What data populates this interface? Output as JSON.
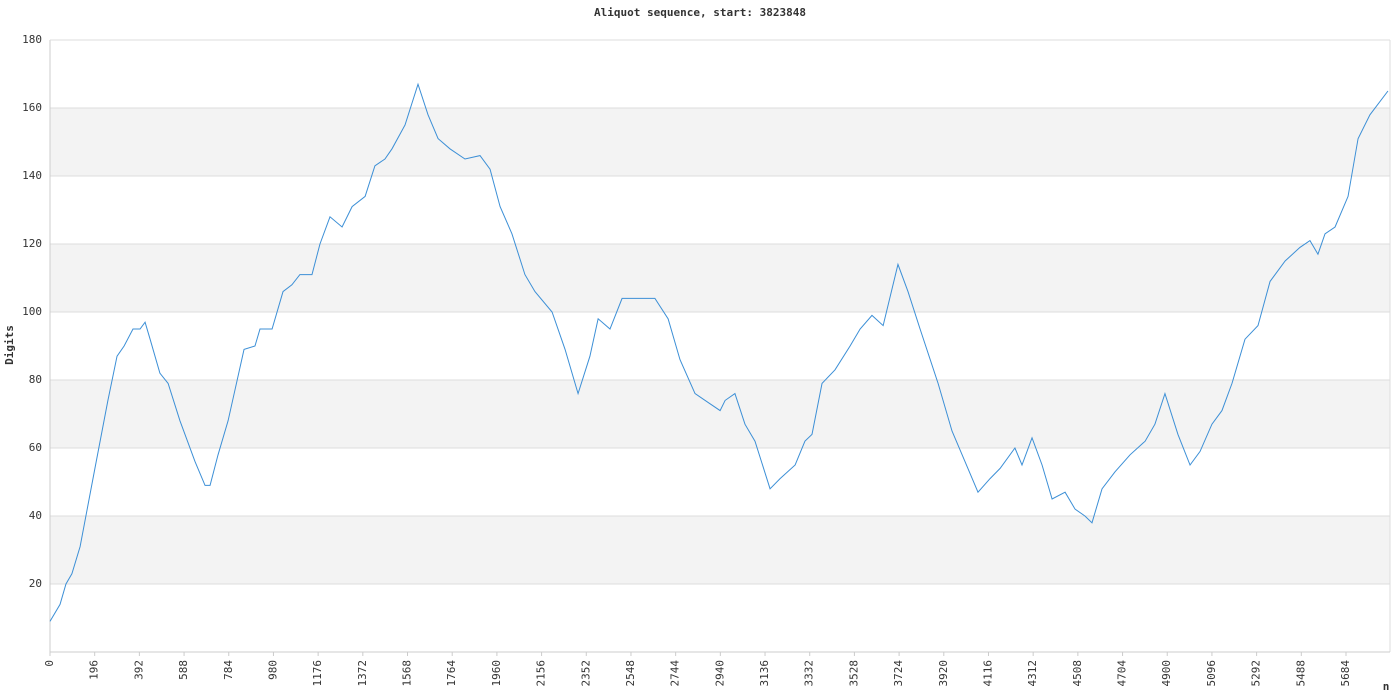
{
  "chart_data": {
    "type": "line",
    "title": "Aliquot sequence, start: 3823848",
    "x_label": "n",
    "y_label": "Digits",
    "x": [
      0,
      44,
      70,
      96,
      132,
      197,
      254,
      294,
      325,
      364,
      395,
      417,
      439,
      482,
      518,
      570,
      636,
      680,
      702,
      737,
      781,
      811,
      851,
      899,
      921,
      974,
      1022,
      1061,
      1096,
      1149,
      1184,
      1228,
      1281,
      1325,
      1382,
      1425,
      1469,
      1500,
      1557,
      1614,
      1658,
      1702,
      1754,
      1820,
      1886,
      1930,
      1974,
      2026,
      2083,
      2127,
      2202,
      2259,
      2316,
      2368,
      2404,
      2456,
      2509,
      2579,
      2653,
      2711,
      2763,
      2829,
      2895,
      2939,
      2961,
      3004,
      3048,
      3092,
      3158,
      3202,
      3268,
      3311,
      3342,
      3386,
      3443,
      3509,
      3553,
      3605,
      3654,
      3719,
      3763,
      3816,
      3895,
      3956,
      4013,
      4070,
      4123,
      4167,
      4232,
      4263,
      4307,
      4351,
      4395,
      4452,
      4496,
      4539,
      4570,
      4614,
      4671,
      4737,
      4803,
      4846,
      4890,
      4947,
      5000,
      5044,
      5096,
      5140,
      5184,
      5241,
      5298,
      5351,
      5417,
      5482,
      5526,
      5561,
      5592,
      5636,
      5693,
      5737,
      5789,
      5868
    ],
    "series": [
      {
        "name": "Digits",
        "color": "#3c8fd6",
        "values": [
          9,
          14,
          20,
          23,
          31,
          54,
          74,
          87,
          90,
          95,
          95,
          97,
          92,
          82,
          79,
          68,
          56,
          49,
          49,
          58,
          68,
          77,
          89,
          90,
          95,
          95,
          106,
          108,
          111,
          111,
          120,
          128,
          125,
          131,
          134,
          143,
          145,
          148,
          155,
          167,
          158,
          151,
          148,
          145,
          146,
          142,
          131,
          123,
          111,
          106,
          100,
          89,
          76,
          87,
          98,
          95,
          104,
          104,
          104,
          98,
          86,
          76,
          73,
          71,
          74,
          76,
          67,
          62,
          48,
          51,
          55,
          62,
          64,
          79,
          83,
          90,
          95,
          99,
          96,
          114,
          106,
          95,
          79,
          65,
          56,
          47,
          51,
          54,
          60,
          55,
          63,
          55,
          45,
          47,
          42,
          40,
          38,
          48,
          53,
          58,
          62,
          67,
          76,
          64,
          55,
          59,
          67,
          71,
          79,
          92,
          96,
          109,
          115,
          119,
          121,
          117,
          123,
          125,
          134,
          151,
          158,
          165
        ]
      }
    ],
    "xlim": [
      0,
      5877
    ],
    "ylim": [
      0,
      180
    ],
    "xticks": [
      0,
      196,
      392,
      588,
      784,
      980,
      1176,
      1372,
      1568,
      1764,
      1960,
      2156,
      2352,
      2548,
      2744,
      2940,
      3136,
      3332,
      3528,
      3724,
      3920,
      4116,
      4312,
      4508,
      4704,
      4900,
      5096,
      5292,
      5488,
      5684
    ],
    "yticks": [
      20,
      40,
      60,
      80,
      100,
      120,
      140,
      160,
      180
    ],
    "grid": true,
    "band_color": "#f3f3f3"
  }
}
